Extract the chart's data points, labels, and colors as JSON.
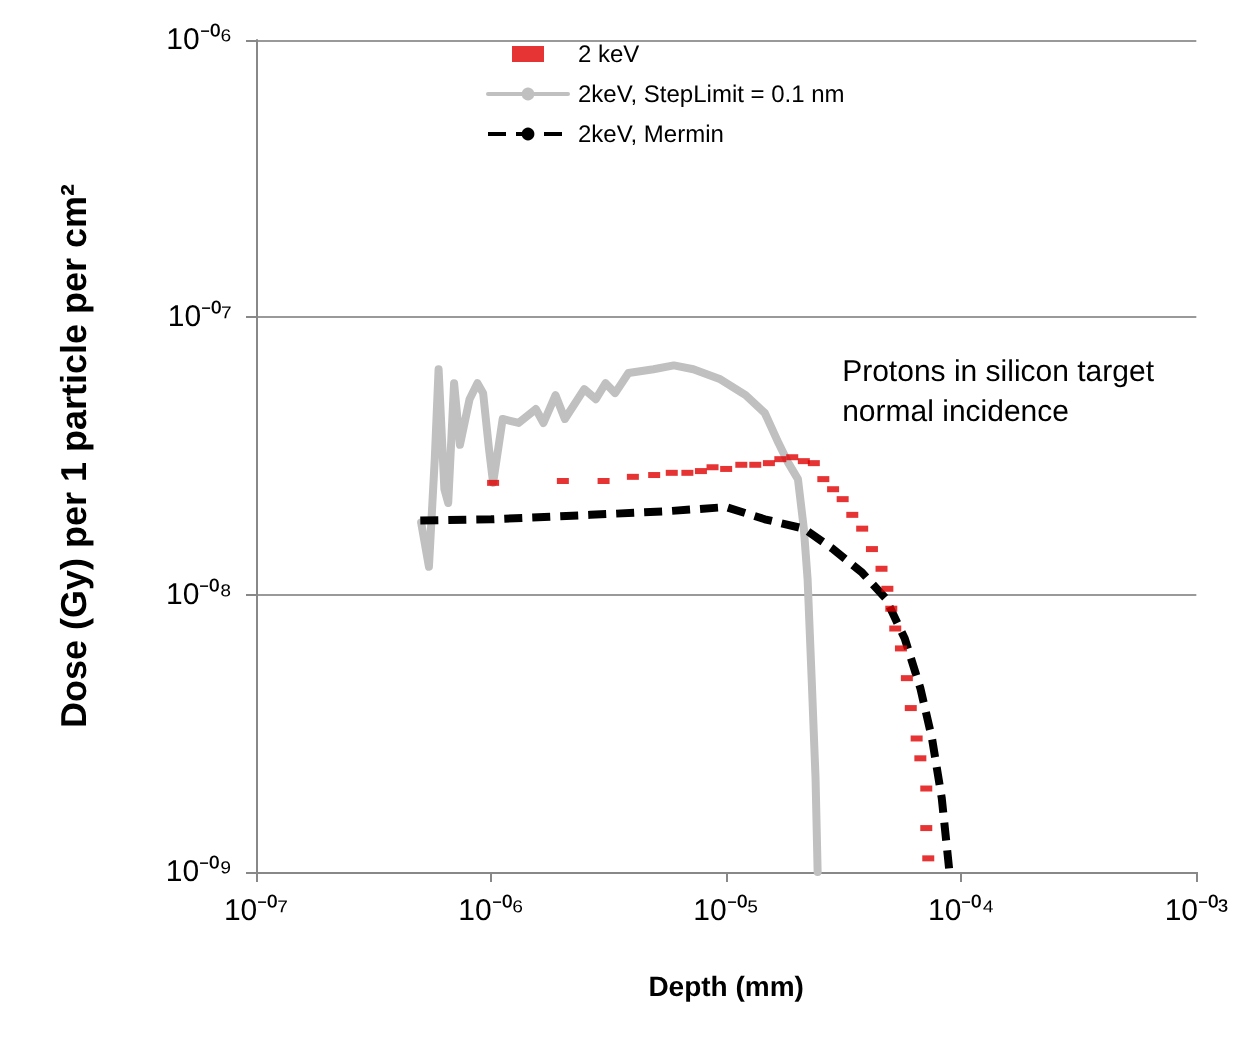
{
  "chart_data": {
    "type": "line",
    "xlabel": "Depth (mm)",
    "ylabel": "Dose (Gy) per 1 particle per cm²",
    "log": "xy",
    "grid": "y",
    "legend": "top",
    "xlim": [
      1e-07,
      0.001
    ],
    "ylim": [
      1e-09,
      1e-06
    ],
    "xticks": [
      {
        "value": 1e-07,
        "label": "10⁻⁰⁷"
      },
      {
        "value": 1e-06,
        "label": "10⁻⁰⁶"
      },
      {
        "value": 1e-05,
        "label": "10⁻⁰⁵"
      },
      {
        "value": 0.0001,
        "label": "10⁻⁰⁴"
      },
      {
        "value": 0.001,
        "label": "10⁻⁰³"
      }
    ],
    "yticks": [
      {
        "value": 1e-09,
        "label": "10⁻⁰⁹"
      },
      {
        "value": 1e-08,
        "label": "10⁻⁰⁸"
      },
      {
        "value": 1e-07,
        "label": "10⁻⁰⁷"
      },
      {
        "value": 1e-06,
        "label": "10⁻⁰⁶"
      }
    ],
    "annotations": [
      "Protons in silicon target\nnormal incidence"
    ],
    "series": [
      {
        "name": "2 keV",
        "type": "scatter",
        "marker": "square",
        "color": "#e00000",
        "x": [
          1.02e-06,
          2.02e-06,
          3.01e-06,
          4.01e-06,
          4.94e-06,
          5.87e-06,
          6.84e-06,
          7.81e-06,
          8.75e-06,
          1e-05,
          1.16e-05,
          1.33e-05,
          1.52e-05,
          1.7e-05,
          1.91e-05,
          2.14e-05,
          2.36e-05,
          2.59e-05,
          2.85e-05,
          3.13e-05,
          3.44e-05,
          3.79e-05,
          4.17e-05,
          4.58e-05,
          4.85e-05,
          5.04e-05,
          5.24e-05,
          5.54e-05,
          5.87e-05,
          6.1e-05,
          6.46e-05,
          6.7e-05,
          7.1e-05,
          7.1e-05,
          7.24e-05
        ],
        "values": [
          2.53e-08,
          2.57e-08,
          2.57e-08,
          2.66e-08,
          2.7e-08,
          2.75e-08,
          2.75e-08,
          2.79e-08,
          2.88e-08,
          2.84e-08,
          2.94e-08,
          2.94e-08,
          2.98e-08,
          3.08e-08,
          3.13e-08,
          3.03e-08,
          2.98e-08,
          2.61e-08,
          2.4e-08,
          2.21e-08,
          1.94e-08,
          1.73e-08,
          1.46e-08,
          1.24e-08,
          1.05e-08,
          8.9e-09,
          7.55e-09,
          6.4e-09,
          5e-09,
          3.9e-09,
          3.03e-09,
          2.57e-09,
          2e-09,
          1.44e-09,
          1.12e-09
        ]
      },
      {
        "name": "2keV, StepLimit = 0.1 nm",
        "type": "line",
        "marker": "none",
        "line_style": "solid",
        "color": "#c0c0c0",
        "x": [
          5.04e-07,
          5.44e-07,
          5.76e-07,
          5.98e-07,
          6.33e-07,
          6.57e-07,
          6.96e-07,
          7.37e-07,
          8.1e-07,
          8.75e-07,
          9.25e-07,
          9.8e-07,
          1.02e-06,
          1.12e-06,
          1.31e-06,
          1.55e-06,
          1.67e-06,
          1.88e-06,
          2.06e-06,
          2.49e-06,
          2.79e-06,
          3.07e-06,
          3.37e-06,
          3.84e-06,
          4.91e-06,
          5.99e-06,
          7.25e-06,
          9.45e-06,
          1.21e-05,
          1.46e-05,
          1.67e-05,
          1.84e-05,
          2.02e-05,
          2.14e-05,
          2.22e-05,
          2.31e-05,
          2.4e-05,
          2.45e-05
        ],
        "values": [
          1.82e-08,
          1.26e-08,
          3.08e-08,
          6.5e-08,
          2.4e-08,
          2.14e-08,
          5.79e-08,
          3.47e-08,
          5.07e-08,
          5.79e-08,
          5.33e-08,
          3.35e-08,
          2.53e-08,
          4.3e-08,
          4.16e-08,
          4.67e-08,
          4.16e-08,
          5.24e-08,
          4.3e-08,
          5.51e-08,
          5.07e-08,
          5.79e-08,
          5.33e-08,
          6.3e-08,
          6.5e-08,
          6.71e-08,
          6.5e-08,
          5.98e-08,
          5.24e-08,
          4.52e-08,
          3.52e-08,
          2.98e-08,
          2.61e-08,
          1.73e-08,
          1.14e-08,
          5e-09,
          2.18e-09,
          1e-09
        ]
      },
      {
        "name": "2keV, Mermin",
        "type": "line",
        "marker": "none",
        "line_style": "dashed",
        "color": "#000000",
        "x": [
          5e-07,
          1e-06,
          2.64e-06,
          5.65e-06,
          1e-05,
          1.46e-05,
          2.14e-05,
          2.85e-05,
          3.79e-05,
          4.77e-05,
          5.75e-05,
          6.7e-05,
          7.51e-05,
          8.26e-05,
          8.91e-05
        ],
        "values": [
          1.85e-08,
          1.87e-08,
          1.94e-08,
          2e-08,
          2.07e-08,
          1.87e-08,
          1.73e-08,
          1.46e-08,
          1.2e-08,
          9.7e-09,
          6.95e-09,
          4.6e-09,
          3.03e-09,
          1.85e-09,
          1e-09
        ]
      }
    ]
  }
}
